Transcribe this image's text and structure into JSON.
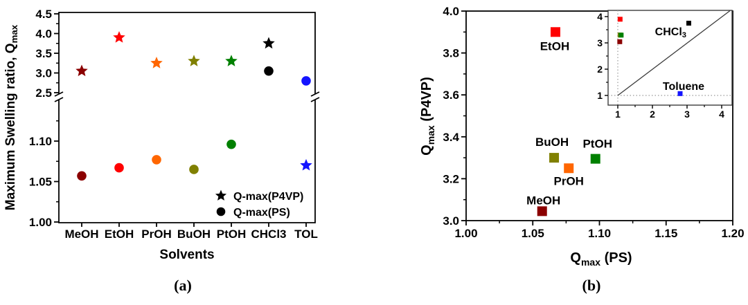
{
  "figure": {
    "panel_a": {
      "label": "(a)",
      "xlabel": "Solvents",
      "ylabel": {
        "text": "Maximum Swelling ratio, Q",
        "sub": "max"
      },
      "legend": [
        {
          "marker": "star",
          "label": "Q-max(P4VP)"
        },
        {
          "marker": "circle",
          "label": "Q-max(PS)"
        }
      ]
    },
    "panel_b": {
      "label": "(b)",
      "xlabel": {
        "pre": "Q",
        "sub": "max",
        "post": " (PS)"
      },
      "ylabel": {
        "pre": "Q",
        "sub": "max",
        "post": " (P4VP)"
      }
    }
  },
  "chart_data": [
    {
      "type": "scatter",
      "panel": "a",
      "title": "",
      "xlabel": "Solvents",
      "ylabel": "Maximum Swelling ratio, Qmax",
      "categories": [
        "MeOH",
        "EtOH",
        "PrOH",
        "BuOH",
        "PtOH",
        "CHCl3",
        "TOL"
      ],
      "colors": [
        "#8B0000",
        "#FF0000",
        "#FF6600",
        "#808000",
        "#008000",
        "#000000",
        "#1414FF"
      ],
      "broken_y_axis": {
        "upper_range": [
          2.5,
          4.5
        ],
        "lower_range": [
          1.0,
          1.135
        ],
        "upper_ticks": [
          2.5,
          3.0,
          3.5,
          4.0,
          4.5
        ],
        "upper_minor_ticks": [
          2.75,
          3.25,
          3.75,
          4.25
        ],
        "lower_ticks": [
          1.0,
          1.05,
          1.1
        ],
        "lower_minor_ticks": [
          1.025,
          1.075,
          1.125
        ]
      },
      "series": [
        {
          "name": "Q-max(P4VP)",
          "marker": "star",
          "values": [
            3.05,
            3.9,
            3.25,
            3.3,
            3.3,
            3.75,
            1.07
          ]
        },
        {
          "name": "Q-max(PS)",
          "marker": "circle",
          "values": [
            1.057,
            1.067,
            1.077,
            1.065,
            1.096,
            3.05,
            2.8
          ]
        }
      ],
      "legend_position": "lower right"
    },
    {
      "type": "scatter",
      "panel": "b",
      "title": "",
      "xlabel": "Qmax (PS)",
      "ylabel": "Qmax (P4VP)",
      "xlim": [
        1.0,
        1.2
      ],
      "ylim": [
        3.0,
        4.0
      ],
      "xticks": [
        "1.00",
        "1.05",
        "1.10",
        "1.15",
        "1.20"
      ],
      "yticks": [
        "3.0",
        "3.2",
        "3.4",
        "3.6",
        "3.8",
        "4.0"
      ],
      "points": [
        {
          "label": "MeOH",
          "x": 1.057,
          "y": 3.045,
          "color": "#8B0000",
          "label_pos": "above"
        },
        {
          "label": "EtOH",
          "x": 1.067,
          "y": 3.9,
          "color": "#FF0000",
          "label_pos": "below"
        },
        {
          "label": "PrOH",
          "x": 1.077,
          "y": 3.25,
          "color": "#FF6600",
          "label_pos": "below"
        },
        {
          "label": "BuOH",
          "x": 1.066,
          "y": 3.3,
          "color": "#808000",
          "label_pos": "above"
        },
        {
          "label": "PtOH",
          "x": 1.097,
          "y": 3.295,
          "color": "#008000",
          "label_pos": "above"
        }
      ],
      "inset": {
        "xlim": [
          0.7,
          4.3
        ],
        "ylim": [
          0.63,
          4.25
        ],
        "xticks": [
          1,
          2,
          3,
          4
        ],
        "yticks": [
          1,
          2,
          3,
          4
        ],
        "diagonal_line": "y = x",
        "dashed_guide_x": 1,
        "dashed_guide_y": 1,
        "points": [
          {
            "label": "EtOH",
            "x": 1.067,
            "y": 3.9,
            "color": "#FF0000"
          },
          {
            "label": "BuOH",
            "x": 1.066,
            "y": 3.3,
            "color": "#808000"
          },
          {
            "label": "PtOH",
            "x": 1.097,
            "y": 3.295,
            "color": "#008000"
          },
          {
            "label": "MeOH",
            "x": 1.057,
            "y": 3.045,
            "color": "#8B0000"
          },
          {
            "label": "CHCl3",
            "x": 3.05,
            "y": 3.75,
            "color": "#000000"
          },
          {
            "label": "Toluene",
            "x": 2.8,
            "y": 1.07,
            "color": "#1414FF"
          }
        ],
        "annotations": [
          {
            "pre": "CHCl",
            "sub": "3",
            "color": "#000000"
          },
          {
            "text": "Toluene",
            "color": "#1414FF"
          }
        ]
      }
    }
  ]
}
